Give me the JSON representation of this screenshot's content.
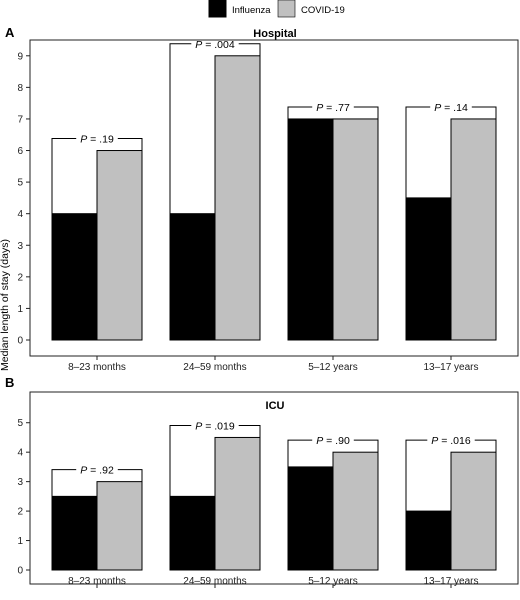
{
  "figure": {
    "ylabel": "Median length of stay (days)",
    "legend": {
      "placement": "top-center",
      "items": [
        {
          "name": "Influenza",
          "color": "#000000"
        },
        {
          "name": "COVID-19",
          "color": "#c0c0c0"
        }
      ]
    }
  },
  "chart_data": [
    {
      "type": "bar",
      "panel_label": "A",
      "title": "Hospital",
      "categories": [
        "8–23 months",
        "24–59 months",
        "5–12 years",
        "13–17 years"
      ],
      "series": [
        {
          "name": "Influenza",
          "color": "#000000",
          "values": [
            4,
            4,
            7,
            4.5
          ]
        },
        {
          "name": "COVID-19",
          "color": "#c0c0c0",
          "values": [
            6,
            9,
            7,
            7
          ]
        }
      ],
      "annotations": [
        {
          "prefix": "P",
          "text": " = .19"
        },
        {
          "prefix": "P",
          "text": " = .004"
        },
        {
          "prefix": "P",
          "text": " = .77"
        },
        {
          "prefix": "P",
          "text": " = .14"
        }
      ],
      "ylim": [
        0,
        9.5
      ],
      "yticks": [
        0,
        1,
        2,
        3,
        4,
        5,
        6,
        7,
        8,
        9
      ],
      "grid": false
    },
    {
      "type": "bar",
      "panel_label": "B",
      "title": "ICU",
      "categories": [
        "8–23 months",
        "24–59 months",
        "5–12 years",
        "13–17 years"
      ],
      "series": [
        {
          "name": "Influenza",
          "color": "#000000",
          "values": [
            2.5,
            2.5,
            3.5,
            2
          ]
        },
        {
          "name": "COVID-19",
          "color": "#c0c0c0",
          "values": [
            3,
            4.5,
            4,
            4
          ]
        }
      ],
      "annotations": [
        {
          "prefix": "P",
          "text": " = .92"
        },
        {
          "prefix": "P",
          "text": " = .019"
        },
        {
          "prefix": "P",
          "text": " = .90"
        },
        {
          "prefix": "P",
          "text": " = .016"
        }
      ],
      "ylim": [
        0,
        5.5
      ],
      "yticks": [
        0,
        1,
        2,
        3,
        4,
        5
      ],
      "grid": false
    }
  ]
}
